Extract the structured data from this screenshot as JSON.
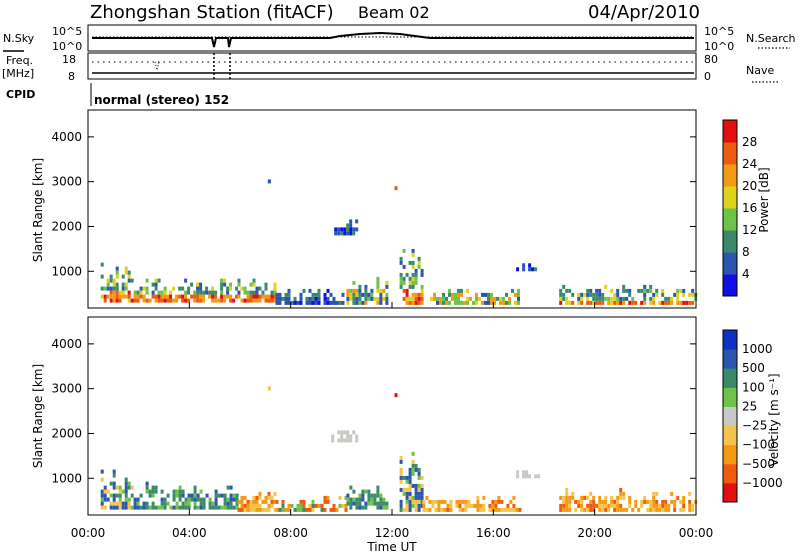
{
  "header": {
    "station": "Zhongshan Station (fitACF)",
    "beam": "Beam 02",
    "date": "04/Apr/2010"
  },
  "strip": {
    "nsky_label": "N.Sky",
    "nsky_tick_top": "10^5",
    "nsky_tick_bottom": "10^0",
    "nsearch_label": "N.Search",
    "nsearch_tick_top": "10^5",
    "nsearch_tick_bottom": "10^0",
    "freq_label": "Freq.",
    "freq_unit": "[MHz]",
    "freq_tick_top": "18",
    "freq_tick_bottom": "8",
    "nave_label": "Nave",
    "nave_tick_top": "80",
    "nave_tick_bottom": "0",
    "cpid_label": "CPID",
    "cpid_text": "normal (stereo) 152"
  },
  "colors": {
    "power": [
      "#1010e6",
      "#2c55b0",
      "#3a8a6a",
      "#6dc24a",
      "#e0d21c",
      "#f39a12",
      "#ee5a10",
      "#e01010"
    ],
    "velocity": [
      "#e01010",
      "#ee5a10",
      "#f39a12",
      "#f5c44d",
      "#c8c8c4",
      "#6dc24a",
      "#3a8a6a",
      "#2c55b0",
      "#1030c0"
    ]
  },
  "chart_data": [
    {
      "type": "heatmap",
      "quantity": "power",
      "ylabel": "Slant Range [km]",
      "yticks": [
        "1000",
        "2000",
        "3000",
        "4000"
      ],
      "ylim": [
        180,
        4600
      ],
      "xticks": [
        "00:00",
        "04:00",
        "08:00",
        "12:00",
        "16:00",
        "20:00",
        "00:00"
      ],
      "xlim_hours": [
        0,
        24
      ],
      "colorbar": {
        "label": "Power [dB]",
        "ticks": [
          "4",
          "8",
          "12",
          "16",
          "20",
          "24",
          "28"
        ],
        "range": [
          0,
          32
        ]
      },
      "patches": [
        {
          "t": [
            0.5,
            1.8
          ],
          "r": [
            300,
            1350
          ],
          "level": "mixed-strong"
        },
        {
          "t": [
            1.8,
            3.2
          ],
          "r": [
            300,
            1000
          ],
          "level": "strong"
        },
        {
          "t": [
            3.2,
            5.9
          ],
          "r": [
            300,
            950
          ],
          "level": "strong"
        },
        {
          "t": [
            5.9,
            7.4
          ],
          "r": [
            300,
            1000
          ],
          "level": "strong"
        },
        {
          "t": [
            7.4,
            10.2
          ],
          "r": [
            250,
            700
          ],
          "level": "weak"
        },
        {
          "t": [
            10.2,
            11.8
          ],
          "r": [
            250,
            900
          ],
          "level": "mixed"
        },
        {
          "t": [
            9.6,
            10.6
          ],
          "r": [
            1800,
            2250
          ],
          "level": "weak"
        },
        {
          "t": [
            12.3,
            13.2
          ],
          "r": [
            250,
            1650
          ],
          "level": "mixed-strong"
        },
        {
          "t": [
            13.5,
            17.0
          ],
          "r": [
            250,
            700
          ],
          "level": "mixed"
        },
        {
          "t": [
            16.9,
            17.8
          ],
          "r": [
            1000,
            1300
          ],
          "level": "weak"
        },
        {
          "t": [
            18.6,
            24.0
          ],
          "r": [
            250,
            800
          ],
          "level": "mixed-strong"
        }
      ]
    },
    {
      "type": "heatmap",
      "quantity": "velocity",
      "ylabel": "Slant Range [km]",
      "yticks": [
        "1000",
        "2000",
        "3000",
        "4000"
      ],
      "ylim": [
        180,
        4600
      ],
      "xticks": [
        "00:00",
        "04:00",
        "08:00",
        "12:00",
        "16:00",
        "20:00",
        "00:00"
      ],
      "xlabel": "Time UT",
      "xlim_hours": [
        0,
        24
      ],
      "colorbar": {
        "label": "Velocity [m s⁻¹]",
        "ticks": [
          "1000",
          "500",
          "100",
          "25",
          "−25",
          "−100",
          "−500",
          "−1000"
        ]
      },
      "patches": [
        {
          "t": [
            0.5,
            1.8
          ],
          "r": [
            300,
            1300
          ],
          "v": "mixed-positive"
        },
        {
          "t": [
            1.8,
            5.9
          ],
          "r": [
            300,
            950
          ],
          "v": "positive"
        },
        {
          "t": [
            5.9,
            7.4
          ],
          "r": [
            250,
            900
          ],
          "v": "negative"
        },
        {
          "t": [
            7.4,
            10.2
          ],
          "r": [
            250,
            700
          ],
          "v": "mixed"
        },
        {
          "t": [
            10.2,
            11.8
          ],
          "r": [
            300,
            850
          ],
          "v": "positive"
        },
        {
          "t": [
            9.6,
            10.6
          ],
          "r": [
            1800,
            2250
          ],
          "v": "near-zero"
        },
        {
          "t": [
            12.3,
            13.2
          ],
          "r": [
            250,
            1650
          ],
          "v": "mixed-positive"
        },
        {
          "t": [
            13.2,
            17.0
          ],
          "r": [
            250,
            700
          ],
          "v": "negative"
        },
        {
          "t": [
            16.9,
            17.8
          ],
          "r": [
            1000,
            1300
          ],
          "v": "near-zero"
        },
        {
          "t": [
            18.6,
            24.0
          ],
          "r": [
            250,
            800
          ],
          "v": "negative"
        }
      ]
    }
  ]
}
